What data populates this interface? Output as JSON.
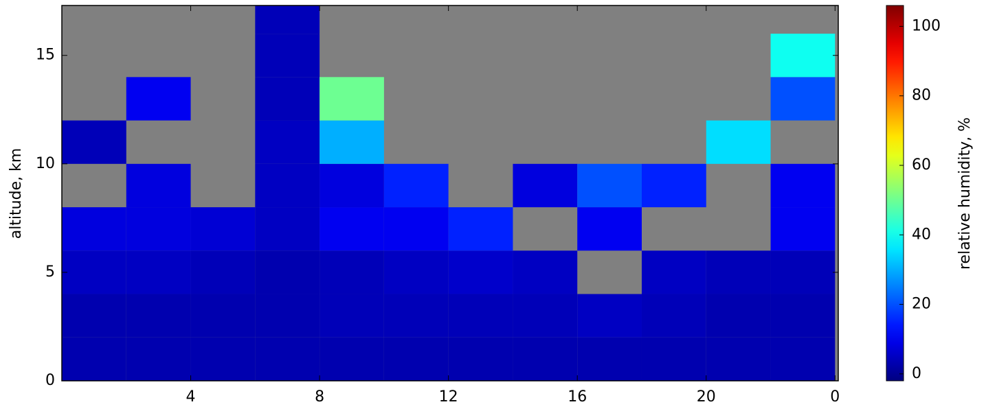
{
  "chart_data": {
    "type": "heatmap",
    "x_label": null,
    "y_label": "altitude, km",
    "colorbar_label": "relative humidity, %",
    "x": [
      0,
      2,
      4,
      6,
      8,
      10,
      12,
      14,
      16,
      18,
      20,
      22,
      24
    ],
    "y": [
      0,
      2,
      4,
      6,
      8,
      10,
      12,
      14,
      16,
      17.3
    ],
    "z": [
      [
        3,
        3,
        3,
        3,
        3,
        3,
        3,
        3,
        3,
        3,
        3,
        3
      ],
      [
        3,
        3,
        3,
        3,
        4,
        4,
        4,
        4,
        5,
        4,
        3,
        3
      ],
      [
        5,
        5,
        4,
        3,
        4,
        5,
        6,
        5,
        null,
        5,
        4,
        4
      ],
      [
        8,
        8,
        7,
        5,
        10,
        10,
        15,
        null,
        10,
        null,
        null,
        10
      ],
      [
        null,
        8,
        null,
        5,
        8,
        15,
        null,
        8,
        20,
        15,
        null,
        10
      ],
      [
        4,
        null,
        null,
        5,
        30,
        null,
        null,
        null,
        null,
        null,
        35,
        null
      ],
      [
        null,
        10,
        null,
        4,
        50,
        null,
        null,
        null,
        null,
        null,
        null,
        20
      ],
      [
        null,
        null,
        null,
        4,
        null,
        null,
        null,
        null,
        null,
        null,
        null,
        40
      ],
      [
        null,
        null,
        null,
        4,
        null,
        null,
        null,
        null,
        null,
        null,
        null,
        null
      ]
    ],
    "colormap": "jet",
    "missing_color": "#808080",
    "xlim": [
      0,
      24.1
    ],
    "ylim": [
      0,
      17.3
    ],
    "clim": [
      -2,
      106
    ],
    "xticks": [
      4,
      8,
      12,
      16,
      20,
      {
        "value": 24,
        "label": "0"
      }
    ],
    "yticks": [
      0,
      5,
      10,
      15
    ],
    "cticks": [
      0,
      20,
      40,
      60,
      80,
      100
    ]
  }
}
